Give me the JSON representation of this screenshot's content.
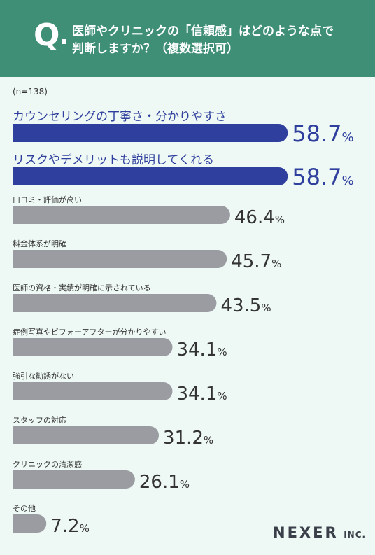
{
  "header": {
    "q_letter": "Q",
    "question_line1": "医師やクリニックの「信頼感」はどのような点で",
    "question_line2": "判断しますか？（複数選択可）"
  },
  "note": "(n=138)",
  "logo": {
    "main": "NEXER",
    "sub": "INC."
  },
  "colors": {
    "header": "#3f8f76",
    "highlight": "#2f3f9e",
    "normal": "#9a9ca1",
    "background": "#eef8f4"
  },
  "chart_data": {
    "type": "bar",
    "orientation": "horizontal",
    "unit": "%",
    "categories": [
      "カウンセリングの丁寧さ・分かりやすさ",
      "リスクやデメリットも説明してくれる",
      "口コミ・評価が高い",
      "料金体系が明確",
      "医師の資格・実績が明確に示されている",
      "症例写真やビフォーアフターが分かりやすい",
      "強引な勧誘がない",
      "スタッフの対応",
      "クリニックの清潔感",
      "その他"
    ],
    "values": [
      58.7,
      58.7,
      46.4,
      45.7,
      43.5,
      34.1,
      34.1,
      31.2,
      26.1,
      7.2
    ],
    "value_labels": [
      "58.7",
      "58.7",
      "46.4",
      "45.7",
      "43.5",
      "34.1",
      "34.1",
      "31.2",
      "26.1",
      "7.2"
    ],
    "highlighted": [
      true,
      true,
      false,
      false,
      false,
      false,
      false,
      false,
      false,
      false
    ],
    "xlim": [
      0,
      100
    ],
    "grid": false,
    "legend": "none"
  }
}
